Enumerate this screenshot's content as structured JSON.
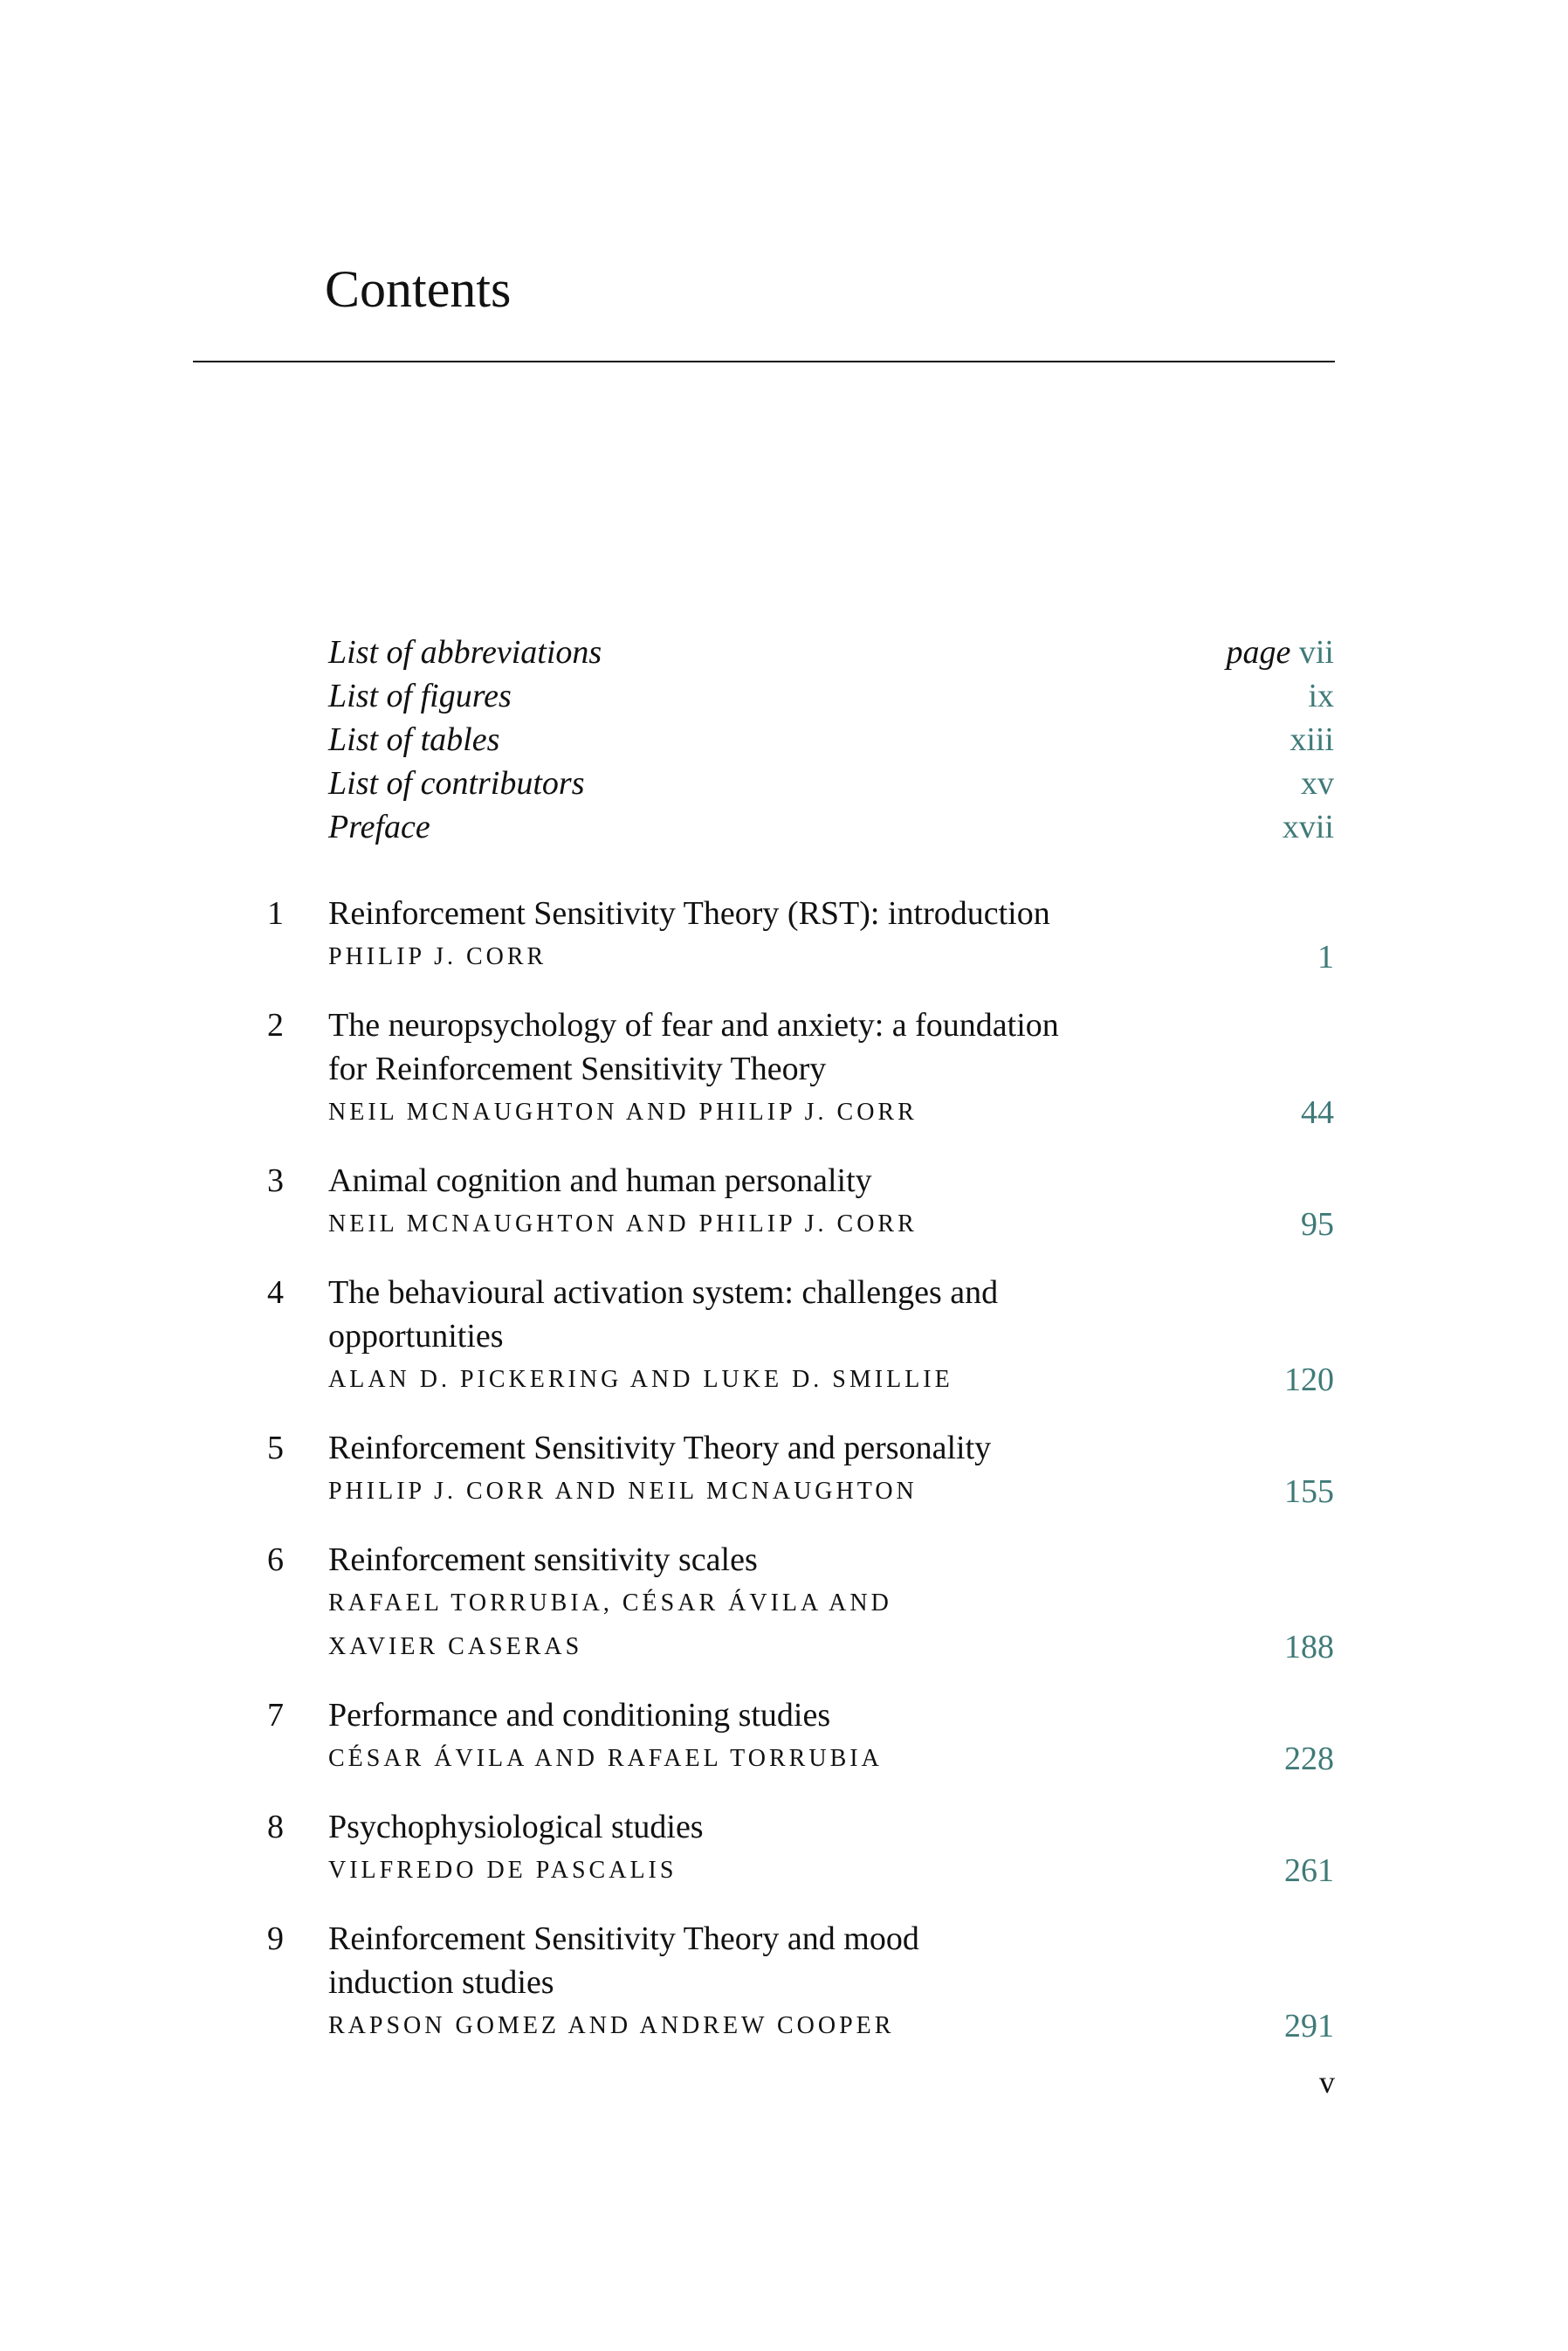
{
  "title": "Contents",
  "front_matter": [
    {
      "label": "List of abbreviations",
      "page_prefix": "page",
      "page": "vii"
    },
    {
      "label": "List of figures",
      "page": "ix"
    },
    {
      "label": "List of tables",
      "page": "xiii"
    },
    {
      "label": "List of contributors",
      "page": "xv"
    },
    {
      "label": "Preface",
      "page": "xvii"
    }
  ],
  "chapters": [
    {
      "num": "1",
      "title": [
        "Reinforcement Sensitivity Theory (RST): introduction"
      ],
      "authors": [
        "Philip J. Corr"
      ],
      "page": "1"
    },
    {
      "num": "2",
      "title": [
        "The neuropsychology of fear and anxiety: a foundation",
        "for Reinforcement Sensitivity Theory"
      ],
      "authors": [
        "Neil McNaughton and Philip J. Corr"
      ],
      "page": "44"
    },
    {
      "num": "3",
      "title": [
        "Animal cognition and human personality"
      ],
      "authors": [
        "Neil McNaughton and Philip J. Corr"
      ],
      "page": "95"
    },
    {
      "num": "4",
      "title": [
        "The behavioural activation system: challenges and",
        "opportunities"
      ],
      "authors": [
        "Alan D. Pickering and Luke D. Smillie"
      ],
      "page": "120"
    },
    {
      "num": "5",
      "title": [
        "Reinforcement Sensitivity Theory and personality"
      ],
      "authors": [
        "Philip J. Corr and Neil McNaughton"
      ],
      "page": "155"
    },
    {
      "num": "6",
      "title": [
        "Reinforcement sensitivity scales"
      ],
      "authors": [
        "Rafael Torrubia, César Ávila and",
        "Xavier Caseras"
      ],
      "page": "188"
    },
    {
      "num": "7",
      "title": [
        "Performance and conditioning studies"
      ],
      "authors": [
        "César Ávila and Rafael Torrubia"
      ],
      "page": "228"
    },
    {
      "num": "8",
      "title": [
        "Psychophysiological studies"
      ],
      "authors": [
        "Vilfredo De Pascalis"
      ],
      "page": "261"
    },
    {
      "num": "9",
      "title": [
        "Reinforcement Sensitivity Theory and mood",
        "induction studies"
      ],
      "authors": [
        "Rapson Gomez and Andrew Cooper"
      ],
      "page": "291"
    }
  ],
  "folio": "v",
  "colors": {
    "page_number": "#3f7a78",
    "text": "#111111"
  }
}
